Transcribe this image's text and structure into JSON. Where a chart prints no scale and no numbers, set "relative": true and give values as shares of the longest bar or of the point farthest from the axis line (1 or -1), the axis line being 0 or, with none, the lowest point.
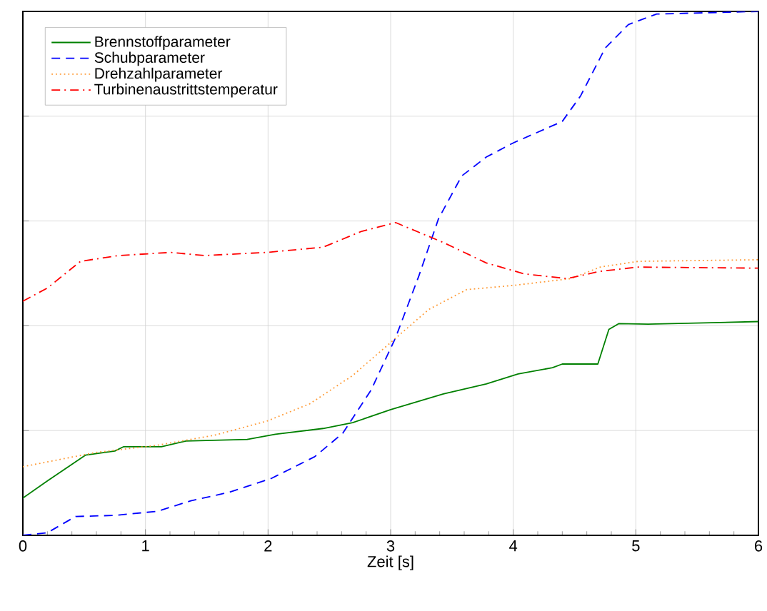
{
  "chart_data": {
    "type": "line",
    "relative": true,
    "xlabel": "Zeit [s]",
    "xlim": [
      0,
      6
    ],
    "xticks": [
      0,
      1,
      2,
      3,
      4,
      5,
      6
    ],
    "grid": true,
    "legend": "top left",
    "marker": "none",
    "series": [
      {
        "name": "Brennstoffparameter",
        "color": "#008000",
        "line_style": "solid",
        "x": [
          0,
          0.2,
          0.51,
          0.75,
          0.82,
          1.13,
          1.33,
          1.83,
          2.06,
          2.45,
          2.69,
          3.0,
          3.43,
          3.78,
          4.04,
          4.32,
          4.4,
          4.69,
          4.78,
          4.86,
          5.1,
          6.0
        ],
        "values": [
          0.071,
          0.104,
          0.153,
          0.161,
          0.169,
          0.169,
          0.18,
          0.183,
          0.193,
          0.204,
          0.215,
          0.24,
          0.27,
          0.289,
          0.308,
          0.32,
          0.327,
          0.327,
          0.393,
          0.404,
          0.403,
          0.408
        ]
      },
      {
        "name": "Schubparameter",
        "color": "#0000ff",
        "line_style": "dashed",
        "x": [
          0,
          0.2,
          0.43,
          0.75,
          1.1,
          1.37,
          1.68,
          2.03,
          2.38,
          2.61,
          2.84,
          3.04,
          3.23,
          3.39,
          3.58,
          3.78,
          4.0,
          4.4,
          4.55,
          4.75,
          4.94,
          5.17,
          6.0
        ],
        "values": [
          0,
          0.005,
          0.036,
          0.038,
          0.046,
          0.066,
          0.082,
          0.109,
          0.15,
          0.195,
          0.277,
          0.377,
          0.495,
          0.604,
          0.686,
          0.722,
          0.749,
          0.79,
          0.839,
          0.93,
          0.975,
          0.995,
          1.0
        ]
      },
      {
        "name": "Drehzahlparameter",
        "color": "#ff9933",
        "line_style": "dotted",
        "x": [
          0,
          0.59,
          1.1,
          1.56,
          1.99,
          2.34,
          2.69,
          3.0,
          3.31,
          3.62,
          4.0,
          4.47,
          4.71,
          5.02,
          6.0
        ],
        "values": [
          0.131,
          0.158,
          0.172,
          0.191,
          0.218,
          0.251,
          0.305,
          0.368,
          0.431,
          0.469,
          0.477,
          0.49,
          0.512,
          0.523,
          0.526
        ]
      },
      {
        "name": "Turbinenaustrittstemperatur",
        "color": "#ff0000",
        "line_style": "dashdot",
        "x": [
          0,
          0.2,
          0.47,
          0.78,
          1.21,
          1.48,
          1.99,
          2.45,
          2.76,
          3.04,
          3.43,
          3.78,
          4.09,
          4.44,
          4.71,
          5.02,
          6.0
        ],
        "values": [
          0.447,
          0.472,
          0.523,
          0.534,
          0.54,
          0.534,
          0.54,
          0.55,
          0.58,
          0.597,
          0.559,
          0.52,
          0.499,
          0.49,
          0.504,
          0.512,
          0.51
        ]
      }
    ]
  }
}
